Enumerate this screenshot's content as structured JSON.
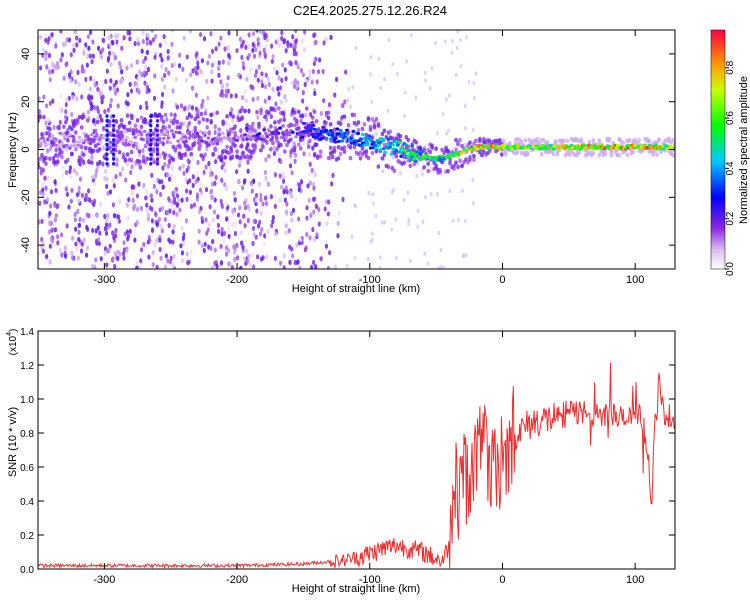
{
  "title": "C2E4.2025.275.12.26.R24",
  "chart_data": [
    {
      "type": "heatmap",
      "xlabel": "Height of straight line (km)",
      "ylabel": "Frequency (Hz)",
      "xlim": [
        -350,
        130
      ],
      "ylim": [
        -50,
        50
      ],
      "xticks": [
        -300,
        -200,
        -100,
        0,
        100
      ],
      "yticks": [
        -40,
        -20,
        0,
        20,
        40
      ],
      "colorbar": {
        "label": "Normalized spectral amplitude",
        "range": [
          0,
          0.95
        ],
        "ticks": [
          "0.0",
          "0.2",
          "0.4",
          "0.6",
          "0.8"
        ],
        "colormap": [
          "#ffffff",
          "#8a2be2",
          "#0000ff",
          "#00c8ff",
          "#00ff00",
          "#ffff00",
          "#ff0000"
        ]
      },
      "ridge": {
        "x": [
          -300,
          -250,
          -200,
          -180,
          -150,
          -130,
          -110,
          -90,
          -70,
          -60,
          -50,
          -40,
          -30,
          -20,
          -10,
          0,
          20,
          50,
          80,
          110,
          130
        ],
        "freq": [
          4,
          5,
          6,
          7,
          8,
          6,
          5,
          2,
          -1,
          -3,
          -4,
          -3,
          -1,
          1,
          1,
          1,
          1,
          1,
          1,
          1,
          1
        ],
        "amplitude": [
          0.15,
          0.15,
          0.2,
          0.25,
          0.3,
          0.35,
          0.4,
          0.45,
          0.5,
          0.55,
          0.55,
          0.6,
          0.7,
          0.8,
          0.8,
          0.7,
          0.7,
          0.75,
          0.8,
          0.8,
          0.75
        ]
      }
    },
    {
      "type": "line",
      "xlabel": "Height of straight line (km)",
      "ylabel": "SNR (10 * v/v)",
      "yscale_label": "(x10",
      "yscale_exp": "4",
      "xlim": [
        -350,
        130
      ],
      "ylim": [
        0,
        1.4
      ],
      "xticks": [
        -300,
        -200,
        -100,
        0,
        100
      ],
      "yticks": [
        "0.0",
        "0.2",
        "0.4",
        "0.6",
        "0.8",
        "1.0",
        "1.2",
        "1.4"
      ],
      "series": [
        {
          "color": "#e83030",
          "x": [
            -350,
            -300,
            -250,
            -200,
            -150,
            -120,
            -100,
            -90,
            -80,
            -70,
            -60,
            -50,
            -45,
            -40,
            -35,
            -30,
            -25,
            -20,
            -15,
            -10,
            -5,
            0,
            5,
            10,
            15,
            20,
            25,
            30,
            35,
            40,
            45,
            50,
            55,
            60,
            65,
            70,
            75,
            80,
            85,
            90,
            95,
            100,
            105,
            110,
            112,
            115,
            118,
            120,
            125,
            130
          ],
          "y": [
            0.02,
            0.02,
            0.02,
            0.02,
            0.03,
            0.05,
            0.09,
            0.12,
            0.14,
            0.12,
            0.1,
            0.06,
            0.05,
            0.15,
            0.4,
            0.5,
            0.55,
            0.65,
            0.7,
            0.6,
            0.55,
            0.65,
            0.72,
            0.8,
            0.82,
            0.85,
            0.87,
            0.88,
            0.88,
            0.9,
            0.9,
            0.92,
            0.92,
            0.93,
            0.92,
            0.9,
            0.9,
            0.92,
            0.9,
            0.88,
            0.88,
            0.9,
            0.9,
            0.7,
            0.35,
            0.85,
            1.1,
            0.95,
            0.9,
            0.88
          ]
        }
      ]
    }
  ]
}
